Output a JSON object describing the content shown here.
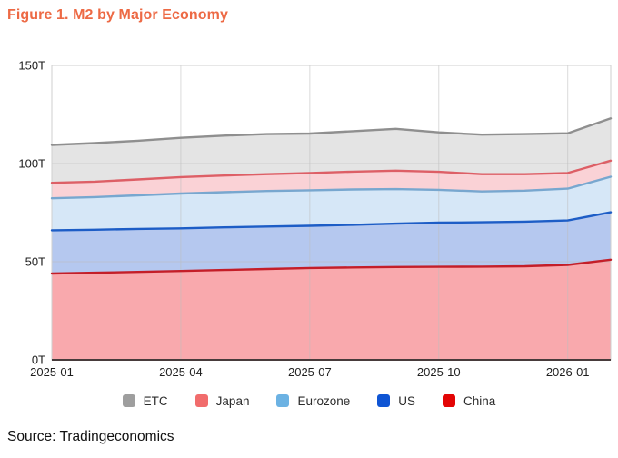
{
  "title": "Figure 1. M2 by Major Economy",
  "source": "Source: Tradingeconomics",
  "colors": {
    "title_accent": "#ed6a45",
    "grid": "#bdbdbd",
    "plot_border": "#cfcfcf",
    "bottom_axis": "#473b3b",
    "tick_text": "#1f1f1f"
  },
  "chart_data": {
    "type": "area",
    "stacked": true,
    "values_are_cumulative": true,
    "unit": "T",
    "title": "M2 by Major Economy",
    "ylim": [
      0,
      150
    ],
    "grid": true,
    "legend_position": "bottom",
    "x": [
      "2025-01",
      "2025-02",
      "2025-03",
      "2025-04",
      "2025-05",
      "2025-06",
      "2025-07",
      "2025-08",
      "2025-09",
      "2025-10",
      "2025-11",
      "2025-12",
      "2026-01",
      "2026-02"
    ],
    "x_tick_labels": [
      "2025-01",
      "2025-04",
      "2025-07",
      "2025-10",
      "2026-01"
    ],
    "x_tick_month_indices": [
      0,
      3,
      6,
      9,
      12
    ],
    "y_tick_labels": [
      "150T",
      "100T",
      "50T",
      "0T"
    ],
    "y_tick_values": [
      150,
      100,
      50,
      0
    ],
    "series": [
      {
        "name": "China",
        "fill": "#f9a9ad",
        "stroke": "#c41e28",
        "cumulative": [
          44.0,
          44.4,
          44.8,
          45.3,
          45.8,
          46.3,
          46.8,
          47.1,
          47.3,
          47.4,
          47.5,
          47.7,
          48.4,
          51.0
        ]
      },
      {
        "name": "US",
        "fill": "#b5c8ef",
        "stroke": "#1d5dc6",
        "cumulative": [
          66.0,
          66.3,
          66.7,
          67.0,
          67.5,
          67.9,
          68.3,
          68.8,
          69.4,
          69.9,
          70.1,
          70.4,
          71.0,
          75.2
        ]
      },
      {
        "name": "Eurozone",
        "fill": "#d6e7f7",
        "stroke": "#78a7cf",
        "cumulative": [
          82.3,
          82.9,
          83.8,
          84.7,
          85.4,
          86.0,
          86.4,
          86.8,
          87.0,
          86.6,
          85.8,
          86.2,
          87.2,
          93.3
        ]
      },
      {
        "name": "Japan",
        "fill": "#fad2d6",
        "stroke": "#dd5f66",
        "cumulative": [
          90.2,
          90.8,
          91.9,
          93.1,
          93.9,
          94.6,
          95.2,
          95.9,
          96.4,
          95.8,
          94.6,
          94.6,
          95.2,
          101.5
        ]
      },
      {
        "name": "ETC",
        "fill": "#e4e4e4",
        "stroke": "#8f8f8f",
        "cumulative": [
          109.5,
          110.4,
          111.6,
          113.1,
          114.2,
          115.0,
          115.3,
          116.5,
          117.7,
          115.9,
          114.7,
          115.0,
          115.4,
          123.0
        ]
      }
    ],
    "legend": [
      {
        "label": "ETC",
        "color": "#9e9e9e"
      },
      {
        "label": "Japan",
        "color": "#f16c6c"
      },
      {
        "label": "Eurozone",
        "color": "#6cb2e3"
      },
      {
        "label": "US",
        "color": "#0f55d4"
      },
      {
        "label": "China",
        "color": "#e30505"
      }
    ]
  }
}
